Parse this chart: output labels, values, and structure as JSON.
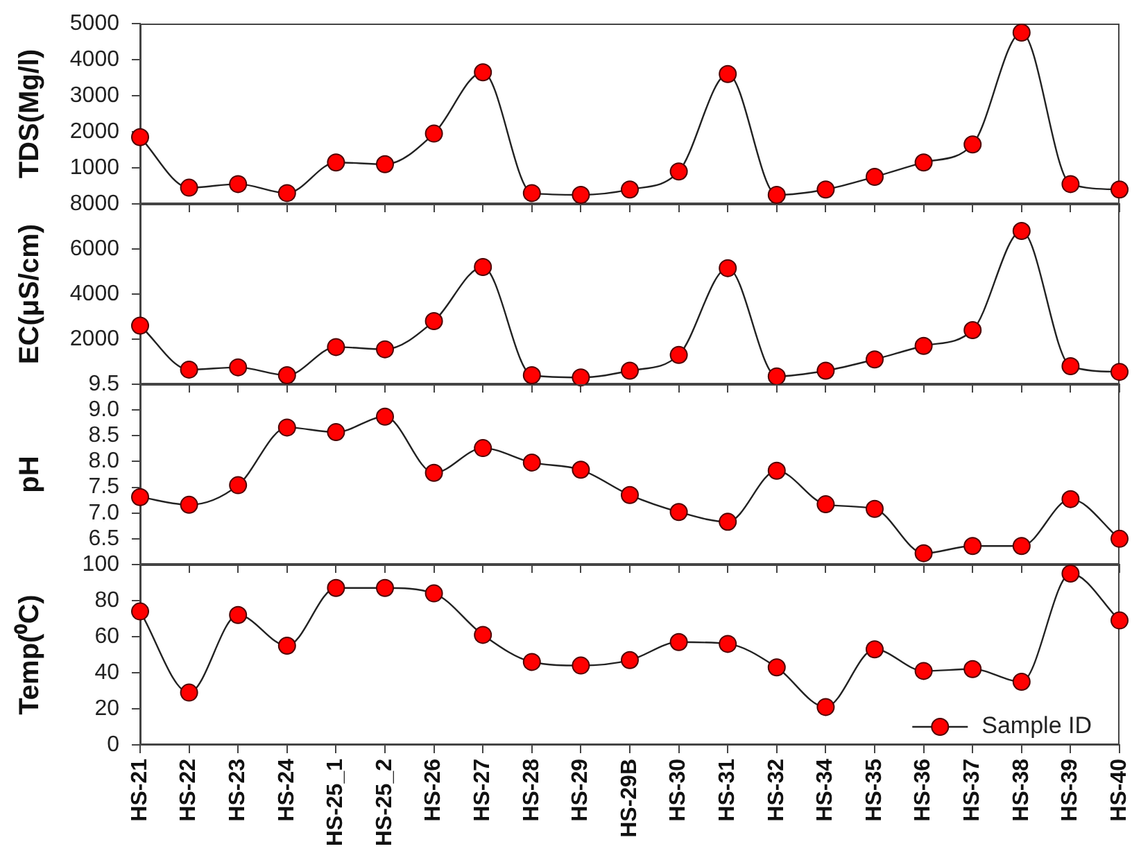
{
  "chart_data": [
    {
      "type": "line",
      "ylabel": "TDS(Mg/l)",
      "categories": [
        null,
        null,
        null,
        null,
        null,
        null,
        null,
        null,
        null,
        null,
        null,
        null,
        null,
        null,
        null,
        null,
        null,
        null,
        null,
        null,
        null
      ],
      "series": [
        {
          "color": "#ff0000",
          "values": [
            1850,
            450,
            550,
            300,
            1150,
            1100,
            1950,
            3650,
            300,
            250,
            400,
            900,
            3600,
            250,
            400,
            750,
            1150,
            1650,
            4750,
            550,
            400
          ]
        }
      ],
      "ylim": [
        0,
        5000
      ],
      "yticks": [
        {
          "value": 0,
          "label": null
        },
        1000,
        2000,
        3000,
        4000,
        5000
      ],
      "tick_labels": "y",
      "marker": "circle"
    },
    {
      "type": "line",
      "ylabel": "EC(μS/cm)",
      "categories": [
        null,
        null,
        null,
        null,
        null,
        null,
        null,
        null,
        null,
        null,
        null,
        null,
        null,
        null,
        null,
        null,
        null,
        null,
        null,
        null,
        null
      ],
      "series": [
        {
          "color": "#ff0000",
          "values": [
            2600,
            650,
            750,
            400,
            1650,
            1550,
            2800,
            5200,
            400,
            300,
            600,
            1300,
            5150,
            350,
            600,
            1100,
            1700,
            2400,
            6800,
            800,
            550
          ]
        }
      ],
      "ylim": [
        0,
        8000
      ],
      "yticks": [
        {
          "value": 0,
          "label": null
        },
        2000,
        4000,
        6000,
        8000
      ],
      "tick_labels": "y",
      "marker": "circle"
    },
    {
      "type": "line",
      "ylabel": "pH",
      "categories": [
        null,
        null,
        null,
        null,
        null,
        null,
        null,
        null,
        null,
        null,
        null,
        null,
        null,
        null,
        null,
        null,
        null,
        null,
        null,
        null,
        null
      ],
      "series": [
        {
          "color": "#ff0000",
          "values": [
            7.31,
            7.16,
            7.54,
            8.66,
            8.57,
            8.87,
            7.78,
            8.26,
            7.98,
            7.84,
            7.35,
            7.02,
            6.83,
            7.82,
            7.17,
            7.08,
            6.22,
            6.36,
            6.36,
            7.27,
            6.5
          ]
        }
      ],
      "ylim": [
        6,
        9.5
      ],
      "yticks": [
        {
          "value": 6,
          "label": null
        },
        6.5,
        {
          "value": 7,
          "label": "7.0"
        },
        7.5,
        {
          "value": 8,
          "label": "8.0"
        },
        8.5,
        {
          "value": 9,
          "label": "9.0"
        },
        9.5
      ],
      "tick_labels": "y",
      "marker": "circle"
    },
    {
      "type": "line",
      "ylabel": "Temp(⁰C)",
      "categories": [
        "HS-21",
        "HS-22",
        "HS-23",
        "HS-24",
        "HS-25_1",
        "HS-25_2",
        "HS-26",
        "HS-27",
        "HS-28",
        "HS-29",
        "HS-29B",
        "HS-30",
        "HS-31",
        "HS-32",
        "HS-34",
        "HS-35",
        "HS-36",
        "HS-37",
        "HS-38",
        "HS-39",
        "HS-40"
      ],
      "series": [
        {
          "name": "Sample ID",
          "color": "#ff0000",
          "values": [
            74,
            29,
            72,
            55,
            87,
            87,
            84,
            61,
            46,
            44,
            47,
            57,
            56,
            43,
            21,
            53,
            41,
            42,
            35,
            95,
            69
          ]
        }
      ],
      "ylim": [
        0,
        100
      ],
      "yticks": [
        0,
        20,
        40,
        60,
        80,
        100
      ],
      "marker": "circle",
      "legend": "bottom right"
    }
  ]
}
